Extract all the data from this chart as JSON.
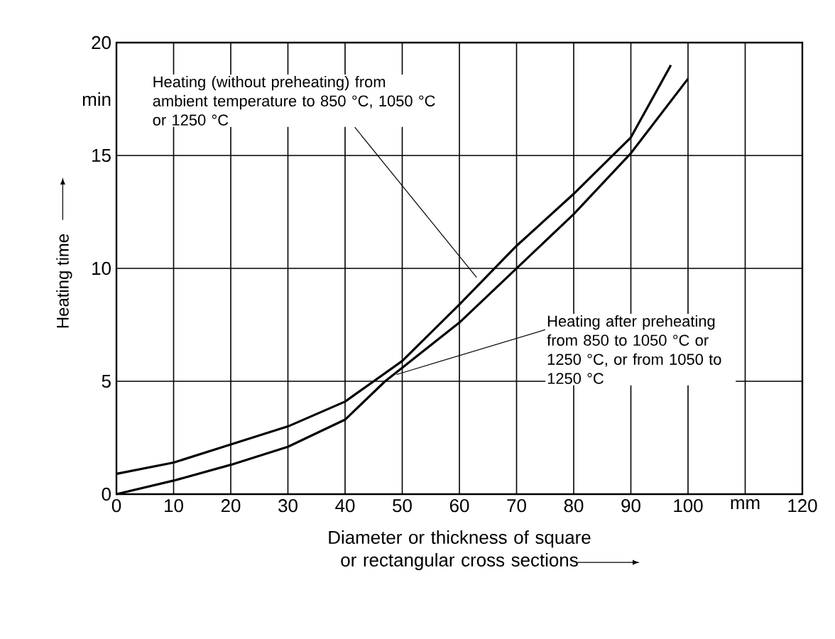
{
  "chart_data": {
    "type": "line",
    "xlabel": "Diameter or thickness of square or rectangular cross sections",
    "ylabel": "Heating time",
    "xlim": [
      0,
      120
    ],
    "ylim": [
      0,
      20
    ],
    "xticks": [
      0,
      10,
      20,
      30,
      40,
      50,
      60,
      70,
      80,
      90,
      100,
      {
        "value": 110,
        "label": "mm"
      },
      120
    ],
    "yticks": [
      0,
      5,
      10,
      15,
      {
        "value": 17.5,
        "label": "min"
      },
      20
    ],
    "grid": true,
    "marker": "none",
    "line_style": "solid",
    "series": [
      {
        "color": "#000000",
        "x": [
          0,
          10,
          20,
          30,
          40,
          50,
          60,
          70,
          80,
          90,
          97
        ],
        "values": [
          0.9,
          1.4,
          2.2,
          3.0,
          4.1,
          5.9,
          8.4,
          11.0,
          13.3,
          15.8,
          19.0
        ]
      },
      {
        "color": "#000000",
        "x": [
          0,
          10,
          20,
          30,
          40,
          47,
          50,
          60,
          70,
          80,
          90,
          100
        ],
        "values": [
          0,
          0.6,
          1.3,
          2.1,
          3.3,
          5.0,
          5.6,
          7.6,
          10.0,
          12.4,
          15.1,
          18.4
        ]
      }
    ],
    "annotations": [
      {
        "text": "Heating (without preheating) from ambient temperature to 850 °C, 1050 °C or 1250 °C",
        "x": 63,
        "y": 9.6
      },
      {
        "text": "Heating after preheating from 850 to 1050 °C or 1250 °C, or from 1050 to 1250 °C",
        "x": 49,
        "y": 5.3
      }
    ]
  }
}
